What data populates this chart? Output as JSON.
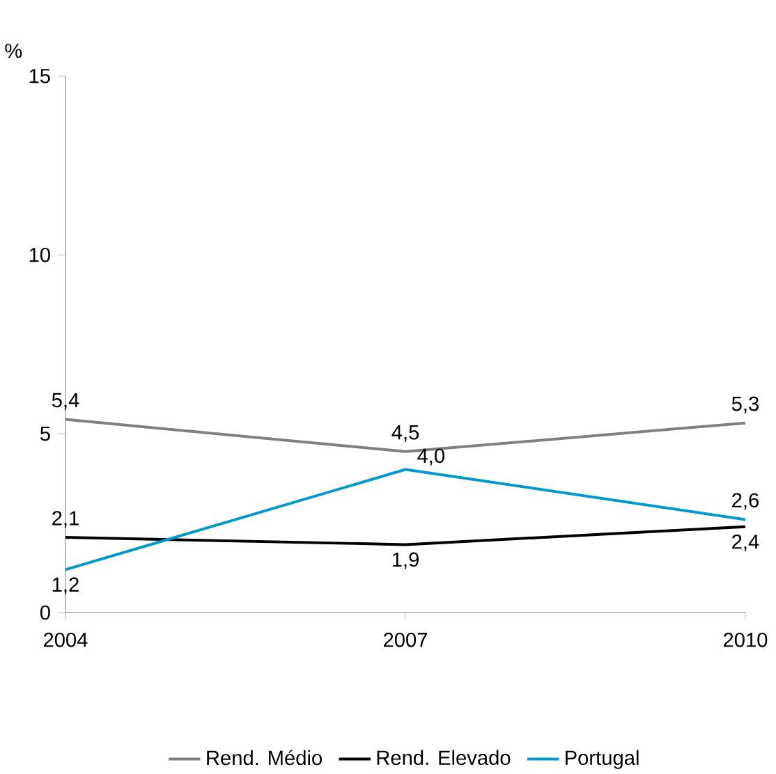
{
  "chart_data": {
    "type": "line",
    "ylabel": "%",
    "categories": [
      "2004",
      "2007",
      "2010"
    ],
    "ylim": [
      0,
      15
    ],
    "yticks": [
      0,
      5,
      10,
      15
    ],
    "legend": "bottom",
    "marker": "none",
    "line_style": "solid",
    "series": [
      {
        "name": "Rend. Médio",
        "color": "#808080",
        "values": [
          5.4,
          4.5,
          5.3
        ],
        "value_labels": [
          "5,4",
          "4,5",
          "5,3"
        ]
      },
      {
        "name": "Rend. Elevado",
        "color": "#000000",
        "values": [
          2.1,
          1.9,
          2.4
        ],
        "value_labels": [
          "2,1",
          "1,9",
          "2,4"
        ]
      },
      {
        "name": "Portugal",
        "color": "#0099cc",
        "values": [
          1.2,
          4.0,
          2.6
        ],
        "value_labels": [
          "1,2",
          "4,0",
          "2,6"
        ]
      }
    ]
  }
}
